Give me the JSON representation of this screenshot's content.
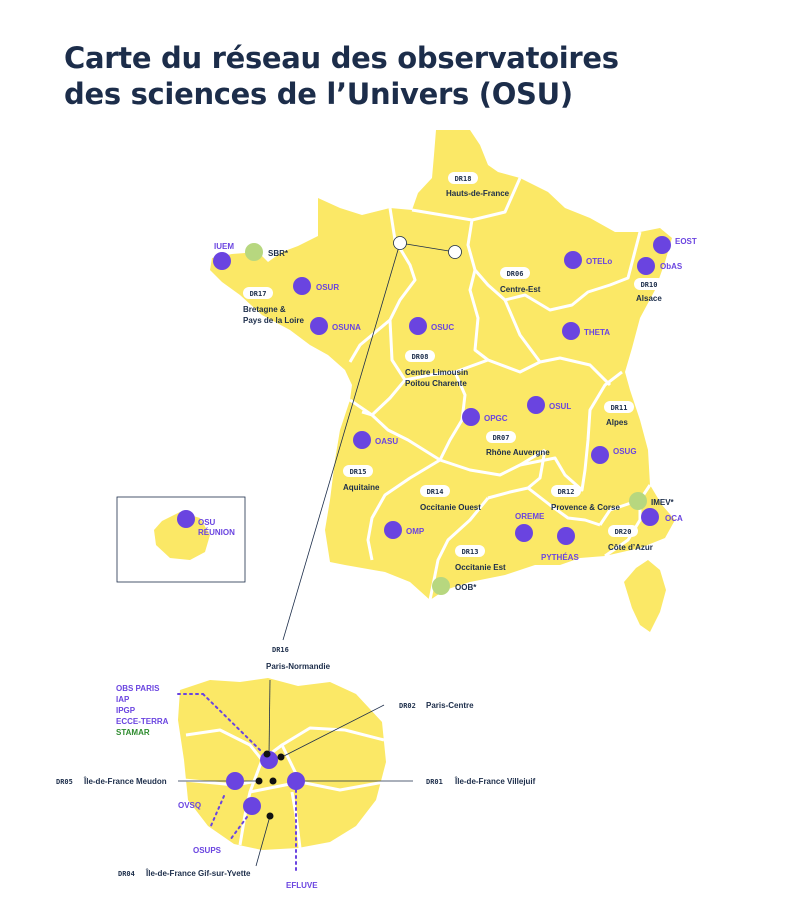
{
  "title": {
    "line1": "Carte du réseau des observatoires",
    "line2": "des sciences de l’Univers (OSU)"
  },
  "colors": {
    "land": "#fbe866",
    "border": "#ffffff",
    "osu": "#6a44e0",
    "partner": "#b7d77f",
    "text": "#1c2d4a",
    "partner_text": "#2e8b2e"
  },
  "regions": [
    {
      "code": "DR18",
      "name": "Hauts-de-France"
    },
    {
      "code": "DR06",
      "name": "Centre-Est"
    },
    {
      "code": "DR10",
      "name": "Alsace"
    },
    {
      "code": "DR17",
      "name": "Bretagne &",
      "name2": "Pays de la Loire"
    },
    {
      "code": "DR08",
      "name": "Centre Limousin",
      "name2": "Poitou Charente"
    },
    {
      "code": "DR11",
      "name": "Alpes"
    },
    {
      "code": "DR07",
      "name": "Rhône Auvergne"
    },
    {
      "code": "DR15",
      "name": "Aquitaine"
    },
    {
      "code": "DR14",
      "name": "Occitanie Ouest"
    },
    {
      "code": "DR12",
      "name": "Provence & Corse"
    },
    {
      "code": "DR20",
      "name": "Côte d’Azur"
    },
    {
      "code": "DR13",
      "name": "Occitanie Est"
    }
  ],
  "observatories": [
    {
      "name": "IUEM",
      "type": "osu"
    },
    {
      "name": "SBR*",
      "type": "partner"
    },
    {
      "name": "OSUR",
      "type": "osu"
    },
    {
      "name": "OSUNA",
      "type": "osu"
    },
    {
      "name": "OSUC",
      "type": "osu"
    },
    {
      "name": "OTELo",
      "type": "osu"
    },
    {
      "name": "THETA",
      "type": "osu"
    },
    {
      "name": "EOST",
      "type": "osu"
    },
    {
      "name": "ObAS",
      "type": "osu"
    },
    {
      "name": "OPGC",
      "type": "osu"
    },
    {
      "name": "OSUL",
      "type": "osu"
    },
    {
      "name": "OSUG",
      "type": "osu"
    },
    {
      "name": "OASU",
      "type": "osu"
    },
    {
      "name": "IMEV*",
      "type": "partner"
    },
    {
      "name": "OCA",
      "type": "osu"
    },
    {
      "name": "OREME",
      "type": "osu"
    },
    {
      "name": "PYTHÉAS",
      "type": "osu"
    },
    {
      "name": "OMP",
      "type": "osu"
    },
    {
      "name": "OOB*",
      "type": "partner"
    }
  ],
  "reunion": {
    "line1": "OSU",
    "line2": "RÉUNION"
  },
  "paris_inset": {
    "dr16": {
      "code": "DR16",
      "name": "Paris-Normandie"
    },
    "dr02": {
      "code": "DR02",
      "name": "Paris-Centre"
    },
    "dr05": {
      "code": "DR05",
      "name": "Île-de-France Meudon"
    },
    "dr01": {
      "code": "DR01",
      "name": "Île-de-France Villejuif"
    },
    "dr04": {
      "code": "DR04",
      "name": "Île-de-France Gif-sur-Yvette"
    },
    "paris_group": [
      "OBS PARIS",
      "IAP",
      "IPGP",
      "ECCE-TERRA"
    ],
    "paris_partner": "STAMAR",
    "ovsq": "OVSQ",
    "osups": "OSUPS",
    "efluve": "EFLUVE"
  }
}
